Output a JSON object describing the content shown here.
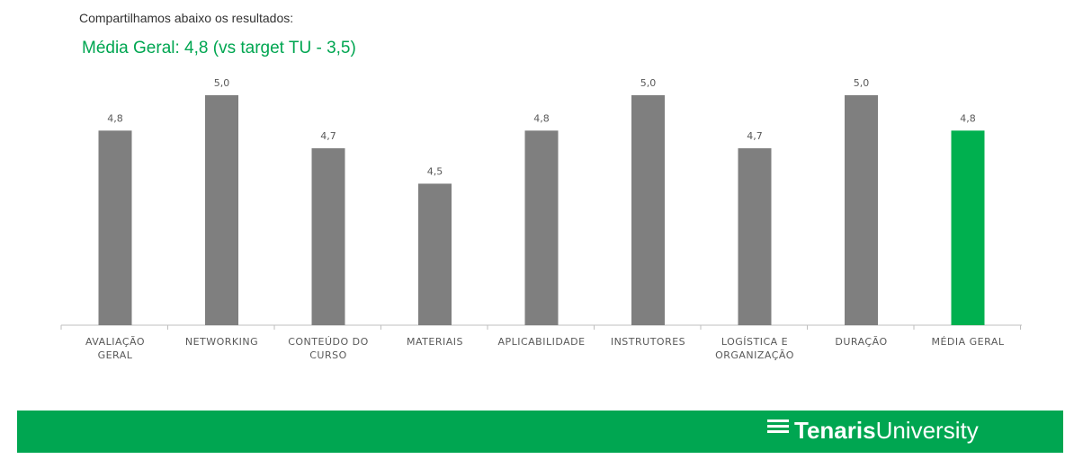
{
  "intro_text": "Compartilhamos abaixo os resultados:",
  "headline": "Média Geral: 4,8 (vs target TU - 3,5)",
  "colors": {
    "bar_default": "#7F7F7F",
    "bar_highlight": "#00B04F",
    "brand_green": "#00A651",
    "axis": "#BFBFBF",
    "label_text": "#595959"
  },
  "chart_data": {
    "type": "bar",
    "categories": [
      [
        "AVALIAÇÃO",
        "GERAL"
      ],
      [
        "NETWORKING"
      ],
      [
        "CONTEÚDO DO",
        "CURSO"
      ],
      [
        "MATERIAIS"
      ],
      [
        "APLICABILIDADE"
      ],
      [
        "INSTRUTORES"
      ],
      [
        "LOGÍSTICA E",
        "ORGANIZAÇÃO"
      ],
      [
        "DURAÇÃO"
      ],
      [
        "MÉDIA GERAL"
      ]
    ],
    "values": [
      4.8,
      5.0,
      4.7,
      4.5,
      4.8,
      5.0,
      4.7,
      5.0,
      4.8
    ],
    "value_labels": [
      "4,8",
      "5,0",
      "4,7",
      "4,5",
      "4,8",
      "5,0",
      "4,7",
      "5,0",
      "4,8"
    ],
    "highlight_index": 8,
    "ylim": [
      3.7,
      5.0
    ],
    "grid": false
  },
  "footer": {
    "brand_bold": "Tenaris",
    "brand_light": "University",
    "logo_icon": "stacked-lines-icon"
  }
}
